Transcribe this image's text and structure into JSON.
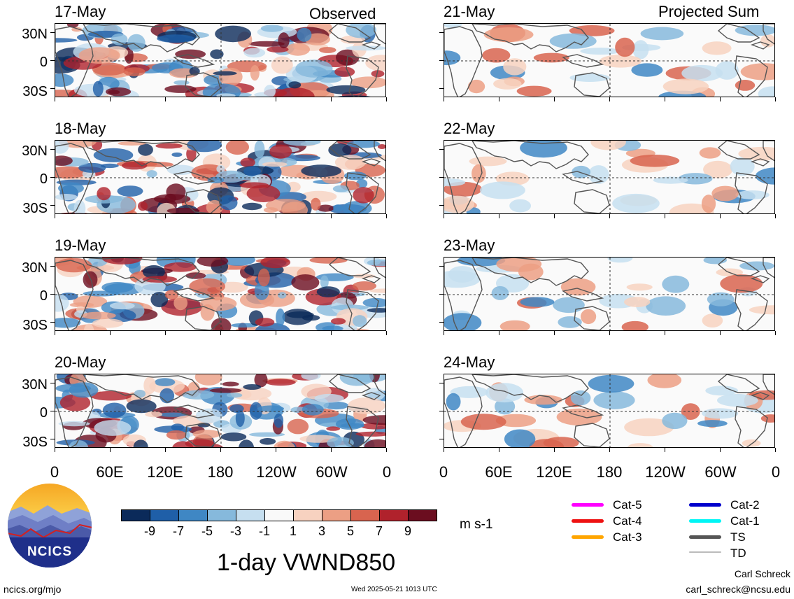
{
  "header": {
    "observed_label": "Observed",
    "projected_label": "Projected Sum"
  },
  "panels": {
    "observed": [
      {
        "date": "17-May"
      },
      {
        "date": "18-May"
      },
      {
        "date": "19-May"
      },
      {
        "date": "20-May"
      }
    ],
    "projected": [
      {
        "date": "21-May"
      },
      {
        "date": "22-May"
      },
      {
        "date": "23-May"
      },
      {
        "date": "24-May"
      }
    ]
  },
  "axes": {
    "lat_labels": [
      "30N",
      "0",
      "30S"
    ],
    "lon_labels": [
      "0",
      "60E",
      "120E",
      "180",
      "120W",
      "60W",
      "0"
    ]
  },
  "colorbar": {
    "labels": [
      "-9",
      "-7",
      "-5",
      "-3",
      "-1",
      "1",
      "3",
      "5",
      "7",
      "9"
    ],
    "colors": [
      "#0b2a5a",
      "#1f5fa8",
      "#3f87c4",
      "#86b9dc",
      "#c6dff0",
      "#f9f9f9",
      "#f7d2c0",
      "#ec9f84",
      "#d8644f",
      "#b0222c",
      "#6b0d1f"
    ],
    "units": "m s-1"
  },
  "main_title": "1-day VWND850",
  "storm_legend": [
    {
      "label": "Cat-5",
      "color": "#ff00ff"
    },
    {
      "label": "Cat-4",
      "color": "#ee1111"
    },
    {
      "label": "Cat-3",
      "color": "#ffa500"
    },
    {
      "label": "Cat-2",
      "color": "#0000cc"
    },
    {
      "label": "Cat-1",
      "color": "#00f5f5"
    },
    {
      "label": "TS",
      "color": "#555555"
    },
    {
      "label": "TD",
      "color": "#bbbbbb"
    }
  ],
  "logo": {
    "text": "NCICS"
  },
  "footer": {
    "url": "ncics.org/mjo",
    "timestamp": "Wed 2025-05-21 1013 UTC",
    "author": "Carl Schreck",
    "email": "carl_schreck@ncsu.edu"
  }
}
